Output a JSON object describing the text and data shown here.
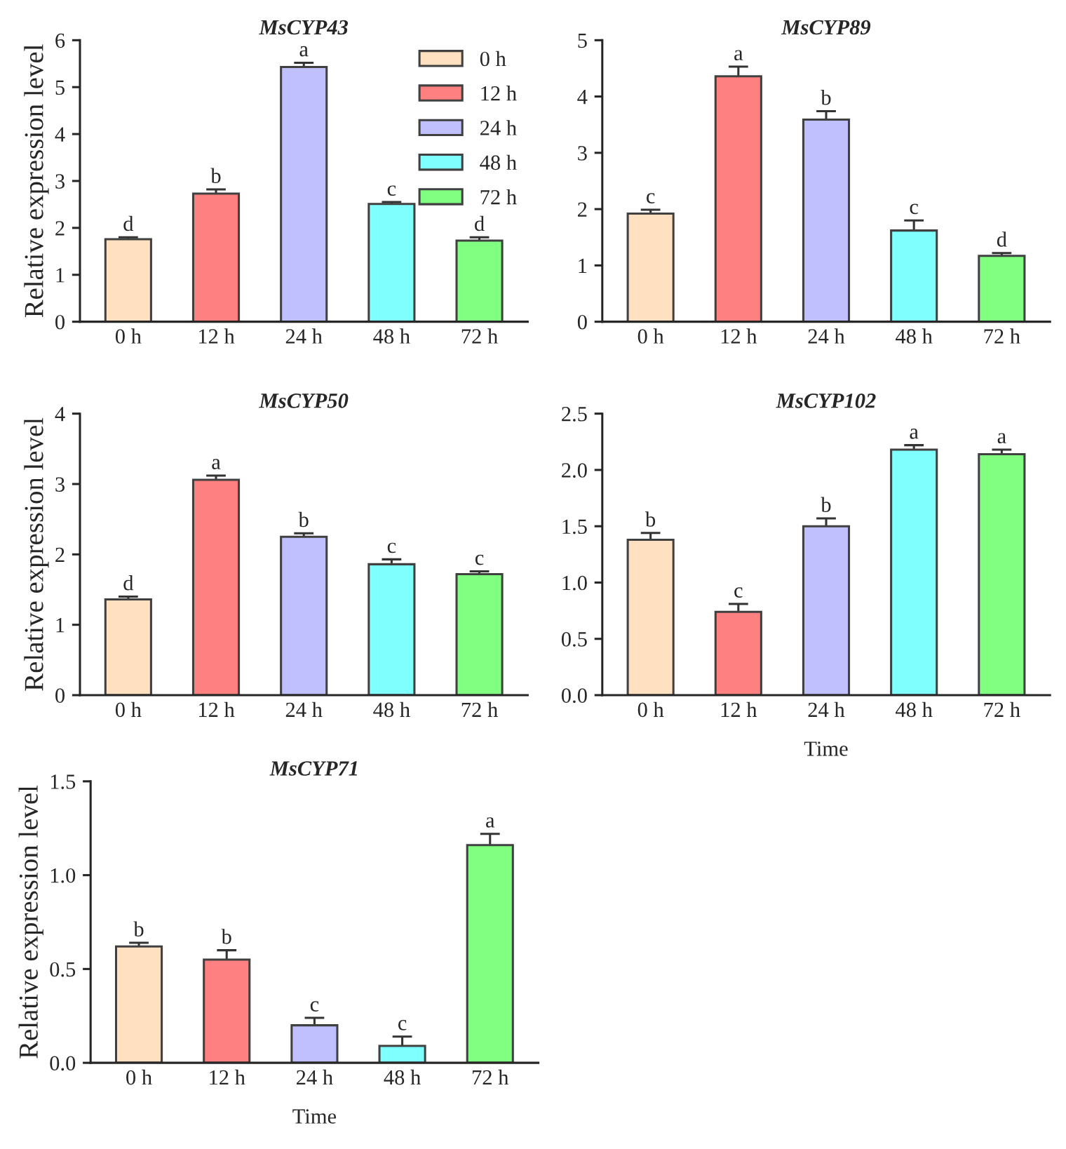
{
  "chart_data": [
    {
      "type": "bar",
      "title": "MsCYP43",
      "ylabel": "Relative expression level",
      "categories": [
        "0 h",
        "12 h",
        "24 h",
        "48 h",
        "72 h"
      ],
      "ylim": [
        0,
        6
      ],
      "yticks": [
        0,
        1,
        2,
        3,
        4,
        5,
        6
      ],
      "legend": "top right",
      "grid": false,
      "series": [
        {
          "name": "0 h",
          "color": "#ffe0c0",
          "values": [
            1.76,
            null,
            null,
            null,
            null
          ],
          "errors": [
            0.04,
            null,
            null,
            null,
            null
          ]
        },
        {
          "name": "12 h",
          "color": "#ff8080",
          "values": [
            null,
            2.73,
            null,
            null,
            null
          ],
          "errors": [
            null,
            0.09,
            null,
            null,
            null
          ]
        },
        {
          "name": "24 h",
          "color": "#c0c0ff",
          "values": [
            null,
            null,
            5.43,
            null,
            null
          ],
          "errors": [
            null,
            null,
            0.09,
            null,
            null
          ]
        },
        {
          "name": "48 h",
          "color": "#80ffff",
          "values": [
            null,
            null,
            null,
            2.51,
            null
          ],
          "errors": [
            null,
            null,
            null,
            0.04,
            null
          ]
        },
        {
          "name": "72 h",
          "color": "#80ff80",
          "values": [
            null,
            null,
            null,
            null,
            1.73
          ],
          "errors": [
            null,
            null,
            null,
            null,
            0.07
          ]
        }
      ],
      "annotations": [
        {
          "text": "d",
          "x": "0 h",
          "y": 1.8
        },
        {
          "text": "b",
          "x": "12 h",
          "y": 2.82
        },
        {
          "text": "a",
          "x": "24 h",
          "y": 5.52
        },
        {
          "text": "c",
          "x": "48 h",
          "y": 2.55
        },
        {
          "text": "d",
          "x": "72 h",
          "y": 1.8
        }
      ]
    },
    {
      "type": "bar",
      "title": "MsCYP89",
      "categories": [
        "0 h",
        "12 h",
        "24 h",
        "48 h",
        "72 h"
      ],
      "ylim": [
        0,
        5
      ],
      "yticks": [
        0,
        1,
        2,
        3,
        4,
        5
      ],
      "grid": false,
      "series": [
        {
          "values": [
            1.92,
            4.36,
            3.59,
            1.62,
            1.17
          ],
          "errors": [
            0.07,
            0.17,
            0.15,
            0.18,
            0.05
          ],
          "colors": [
            "#ffe0c0",
            "#ff8080",
            "#c0c0ff",
            "#80ffff",
            "#80ff80"
          ]
        }
      ],
      "annotations": [
        {
          "text": "c",
          "x": "0 h",
          "y": 1.99
        },
        {
          "text": "a",
          "x": "12 h",
          "y": 4.53
        },
        {
          "text": "b",
          "x": "24 h",
          "y": 3.74
        },
        {
          "text": "c",
          "x": "48 h",
          "y": 1.8
        },
        {
          "text": "d",
          "x": "72 h",
          "y": 1.22
        }
      ]
    },
    {
      "type": "bar",
      "title": "MsCYP50",
      "ylabel": "Relative expression level",
      "categories": [
        "0 h",
        "12 h",
        "24 h",
        "48 h",
        "72 h"
      ],
      "ylim": [
        0,
        4
      ],
      "yticks": [
        0,
        1,
        2,
        3,
        4
      ],
      "grid": false,
      "series": [
        {
          "values": [
            1.36,
            3.06,
            2.25,
            1.86,
            1.72
          ],
          "errors": [
            0.04,
            0.06,
            0.05,
            0.07,
            0.04
          ],
          "colors": [
            "#ffe0c0",
            "#ff8080",
            "#c0c0ff",
            "#80ffff",
            "#80ff80"
          ]
        }
      ],
      "annotations": [
        {
          "text": "d",
          "x": "0 h",
          "y": 1.4
        },
        {
          "text": "a",
          "x": "12 h",
          "y": 3.12
        },
        {
          "text": "b",
          "x": "24 h",
          "y": 2.3
        },
        {
          "text": "c",
          "x": "48 h",
          "y": 1.93
        },
        {
          "text": "c",
          "x": "72 h",
          "y": 1.76
        }
      ]
    },
    {
      "type": "bar",
      "title": "MsCYP102",
      "xlabel": "Time",
      "categories": [
        "0 h",
        "12 h",
        "24 h",
        "48 h",
        "72 h"
      ],
      "ylim": [
        0,
        2.5
      ],
      "yticks": [
        {
          "value": 0,
          "label": "0.0"
        },
        {
          "value": 0.5,
          "label": "0.5"
        },
        {
          "value": 1,
          "label": "1.0"
        },
        {
          "value": 1.5,
          "label": "1.5"
        },
        {
          "value": 2,
          "label": "2.0"
        },
        {
          "value": 2.5,
          "label": "2.5"
        }
      ],
      "grid": false,
      "series": [
        {
          "values": [
            1.38,
            0.74,
            1.5,
            2.18,
            2.14
          ],
          "errors": [
            0.06,
            0.07,
            0.07,
            0.04,
            0.04
          ],
          "colors": [
            "#ffe0c0",
            "#ff8080",
            "#c0c0ff",
            "#80ffff",
            "#80ff80"
          ]
        }
      ],
      "annotations": [
        {
          "text": "b",
          "x": "0 h",
          "y": 1.44
        },
        {
          "text": "c",
          "x": "12 h",
          "y": 0.81
        },
        {
          "text": "b",
          "x": "24 h",
          "y": 1.57
        },
        {
          "text": "a",
          "x": "48 h",
          "y": 2.22
        },
        {
          "text": "a",
          "x": "72 h",
          "y": 2.18
        }
      ]
    },
    {
      "type": "bar",
      "title": "MsCYP71",
      "xlabel": "Time",
      "ylabel": "Relative expression level",
      "categories": [
        "0 h",
        "12 h",
        "24 h",
        "48 h",
        "72 h"
      ],
      "ylim": [
        0,
        1.5
      ],
      "yticks": [
        {
          "value": 0,
          "label": "0.0"
        },
        {
          "value": 0.5,
          "label": "0.5"
        },
        {
          "value": 1,
          "label": "1.0"
        },
        {
          "value": 1.5,
          "label": "1.5"
        }
      ],
      "grid": false,
      "series": [
        {
          "values": [
            0.62,
            0.55,
            0.2,
            0.09,
            1.16
          ],
          "errors": [
            0.02,
            0.05,
            0.04,
            0.05,
            0.06
          ],
          "colors": [
            "#ffe0c0",
            "#ff8080",
            "#c0c0ff",
            "#80ffff",
            "#80ff80"
          ]
        }
      ],
      "annotations": [
        {
          "text": "b",
          "x": "0 h",
          "y": 0.64
        },
        {
          "text": "b",
          "x": "12 h",
          "y": 0.6
        },
        {
          "text": "c",
          "x": "24 h",
          "y": 0.24
        },
        {
          "text": "c",
          "x": "48 h",
          "y": 0.14
        },
        {
          "text": "a",
          "x": "72 h",
          "y": 1.22
        }
      ]
    }
  ]
}
